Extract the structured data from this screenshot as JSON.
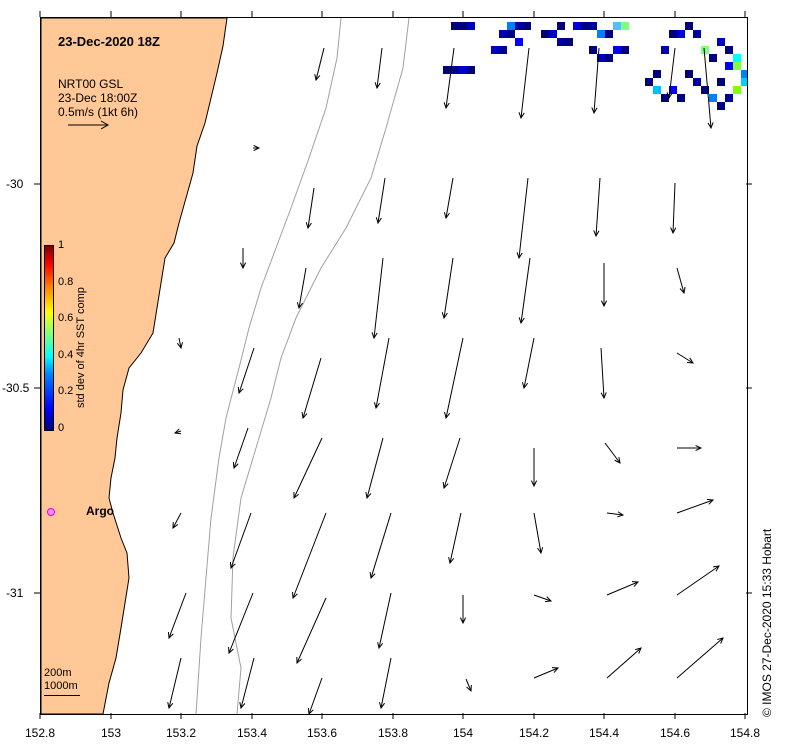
{
  "title": "23-Dec-2020 18Z",
  "legend": {
    "product": "NRT00 GSL",
    "time": "23-Dec 18:00Z",
    "scale": "0.5m/s (1kt 6h)"
  },
  "colorbar": {
    "title": "std dev of 4hr SST comp",
    "ticks": [
      "0",
      "0.2",
      "0.4",
      "0.6",
      "0.8",
      "1"
    ]
  },
  "isobaths": {
    "shallow": "200m",
    "deep": "1000m"
  },
  "argo_label": "Argo",
  "credit": "© IMOS 27-Dec-2020 15:33 Hobart",
  "axes": {
    "x_ticks": [
      "152.8",
      "153",
      "153.2",
      "153.4",
      "153.6",
      "153.8",
      "154",
      "154.2",
      "154.4",
      "154.6",
      "154.8"
    ],
    "y_ticks": [
      "-30",
      "-30.5",
      "-31"
    ]
  },
  "colors": {
    "land": "#ffc896",
    "coast": "#000000",
    "arrow": "#000000",
    "isobath": "#a0a0a0",
    "argo": "#ff00ff"
  }
}
